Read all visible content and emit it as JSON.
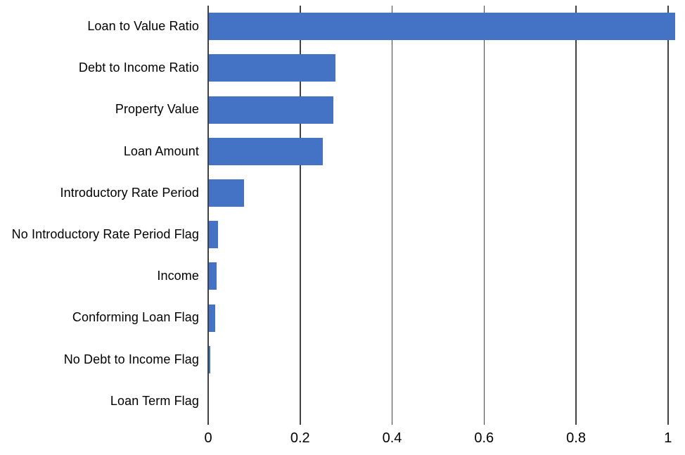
{
  "chart_data": {
    "type": "bar",
    "orientation": "horizontal",
    "title": "",
    "xlabel": "",
    "ylabel": "",
    "categories": [
      "Loan to Value Ratio",
      "Debt to Income Ratio",
      "Property Value",
      "Loan Amount",
      "Introductory Rate Period",
      "No Introductory Rate Period Flag",
      "Income",
      "Conforming Loan Flag",
      "No Debt to Income Flag",
      "Loan Term Flag"
    ],
    "values": [
      1.015,
      0.277,
      0.272,
      0.249,
      0.078,
      0.022,
      0.018,
      0.015,
      0.004,
      0
    ],
    "xlim": [
      0,
      1.037
    ],
    "xticks": [
      0,
      0.2,
      0.4,
      0.6,
      0.8,
      1
    ],
    "xtick_labels": [
      "0",
      "0.2",
      "0.4",
      "0.6",
      "0.8",
      "1"
    ],
    "grid": "vertical-only",
    "legend": "none",
    "colors": {
      "bar": "#4472C4",
      "gridline": "#3f4245",
      "text": "#000000",
      "background": "#ffffff"
    }
  }
}
